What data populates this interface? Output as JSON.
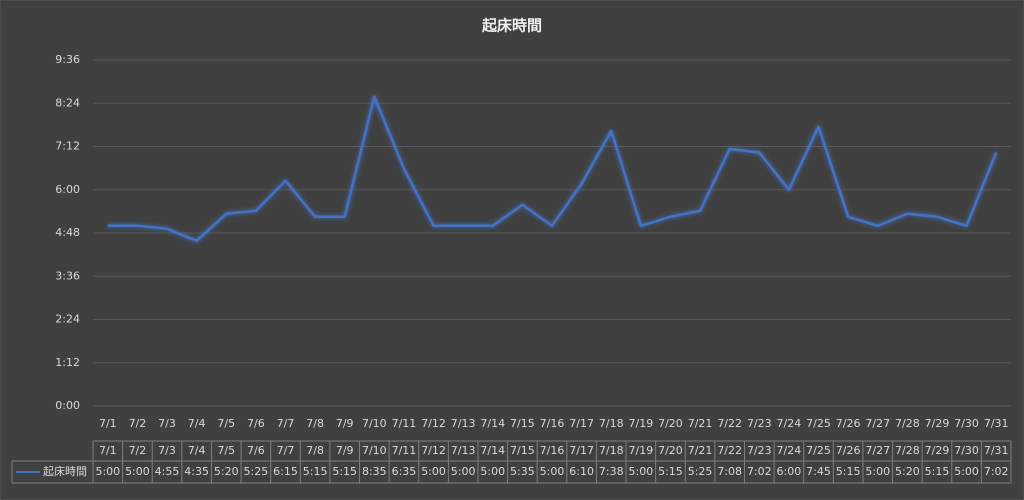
{
  "chart_data": {
    "type": "line",
    "title": "起床時間",
    "categories": [
      "7/1",
      "7/2",
      "7/3",
      "7/4",
      "7/5",
      "7/6",
      "7/7",
      "7/8",
      "7/9",
      "7/10",
      "7/11",
      "7/12",
      "7/13",
      "7/14",
      "7/15",
      "7/16",
      "7/17",
      "7/18",
      "7/19",
      "7/20",
      "7/21",
      "7/22",
      "7/23",
      "7/24",
      "7/25",
      "7/26",
      "7/27",
      "7/28",
      "7/29",
      "7/30",
      "7/31"
    ],
    "series": [
      {
        "name": "起床時間",
        "color": "#4472c4",
        "values": [
          300,
          300,
          295,
          275,
          320,
          325,
          375,
          315,
          315,
          515,
          395,
          300,
          300,
          300,
          335,
          300,
          370,
          458,
          300,
          315,
          325,
          428,
          422,
          360,
          465,
          315,
          300,
          320,
          315,
          300,
          422
        ],
        "value_labels": [
          "5:00",
          "5:00",
          "4:55",
          "4:35",
          "5:20",
          "5:25",
          "6:15",
          "5:15",
          "5:15",
          "8:35",
          "6:35",
          "5:00",
          "5:00",
          "5:00",
          "5:35",
          "5:00",
          "6:10",
          "7:38",
          "5:00",
          "5:15",
          "5:25",
          "7:08",
          "7:02",
          "6:00",
          "7:45",
          "5:15",
          "5:00",
          "5:20",
          "5:15",
          "5:00",
          "7:02"
        ]
      }
    ],
    "ylim": [
      0,
      576
    ],
    "yticks": [
      {
        "value": 0,
        "label": "0:00"
      },
      {
        "value": 72,
        "label": "1:12"
      },
      {
        "value": 144,
        "label": "2:24"
      },
      {
        "value": 216,
        "label": "3:36"
      },
      {
        "value": 288,
        "label": "4:48"
      },
      {
        "value": 360,
        "label": "6:00"
      },
      {
        "value": 432,
        "label": "7:12"
      },
      {
        "value": 504,
        "label": "8:24"
      },
      {
        "value": 576,
        "label": "9:36"
      }
    ],
    "grid": true
  }
}
